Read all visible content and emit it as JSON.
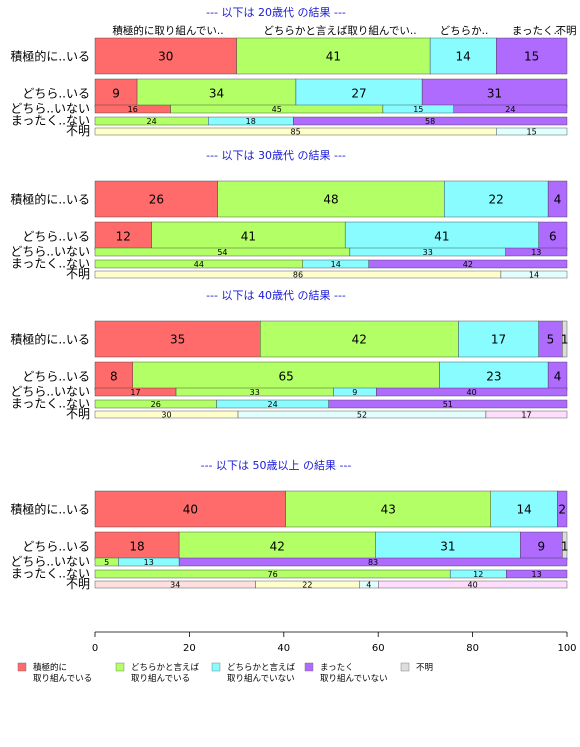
{
  "chart_data": {
    "type": "bar",
    "stacked": "horizontal-100",
    "xlim": [
      0,
      100
    ],
    "x_ticks": [
      0,
      20,
      40,
      60,
      80,
      100
    ],
    "column_headers": [
      "積極的に取り組んでい..",
      "どちらかと言えば取り組んでい..",
      "どちらか..",
      "まったく..",
      "不明"
    ],
    "legend": {
      "position": "bottom",
      "items": [
        {
          "label": [
            "積極的に",
            "取り組んでいる"
          ],
          "color": "#ff6b6b"
        },
        {
          "label": [
            "どちらかと言えば",
            "取り組んでいる"
          ],
          "color": "#b2ff66"
        },
        {
          "label": [
            "どちらかと言えば",
            "取り組んでいない"
          ],
          "color": "#88fcff"
        },
        {
          "label": [
            "まったく",
            "取り組んでいない"
          ],
          "color": "#ae6bfe"
        },
        {
          "label": [
            "不明"
          ],
          "color": "#dddddd"
        }
      ]
    },
    "panels": [
      {
        "title": "--- 以下は 20歳代 の結果 ---",
        "rows": [
          {
            "label": "積極的に..いる",
            "values": [
              30,
              41,
              14,
              15,
              0
            ]
          },
          {
            "label": "どちら..いる",
            "values": [
              9,
              34,
              27,
              31,
              0
            ]
          },
          {
            "label": "どちら..いない",
            "values": [
              16,
              45,
              15,
              24,
              0
            ]
          },
          {
            "label": "まったく..ない",
            "values": [
              24,
              18,
              58
            ]
          },
          {
            "label": "不明",
            "values": [
              85,
              15
            ]
          }
        ]
      },
      {
        "title": "--- 以下は 30歳代 の結果 ---",
        "rows": [
          {
            "label": "積極的に..いる",
            "values": [
              26,
              48,
              22,
              4,
              0
            ]
          },
          {
            "label": "どちら..いる",
            "values": [
              12,
              41,
              41,
              6,
              0
            ]
          },
          {
            "label": "どちら..いない",
            "values": [
              54,
              33,
              13
            ]
          },
          {
            "label": "まったく..ない",
            "values": [
              44,
              14,
              42
            ]
          },
          {
            "label": "不明",
            "values": [
              86,
              14
            ]
          }
        ]
      },
      {
        "title": "--- 以下は 40歳代 の結果 ---",
        "rows": [
          {
            "label": "積極的に..いる",
            "values": [
              35,
              42,
              17,
              5,
              1
            ]
          },
          {
            "label": "どちら..いる",
            "values": [
              8,
              65,
              23,
              4,
              0
            ]
          },
          {
            "label": "どちら..いない",
            "values": [
              17,
              33,
              9,
              40,
              0
            ]
          },
          {
            "label": "まったく..ない",
            "values": [
              26,
              24,
              51
            ]
          },
          {
            "label": "不明",
            "values": [
              30,
              52,
              17
            ]
          }
        ]
      },
      {
        "title": "--- 以下は 50歳以上 の結果 ---",
        "rows": [
          {
            "label": "積極的に..いる",
            "values": [
              40,
              43,
              14,
              2,
              0
            ]
          },
          {
            "label": "どちら..いる",
            "values": [
              18,
              42,
              31,
              9,
              1
            ]
          },
          {
            "label": "どちら..いない",
            "values": [
              5,
              13,
              83
            ]
          },
          {
            "label": "まったく..ない",
            "values": [
              76,
              12,
              13
            ]
          },
          {
            "label": "不明",
            "values": [
              34,
              22,
              4,
              40
            ]
          }
        ]
      }
    ]
  }
}
